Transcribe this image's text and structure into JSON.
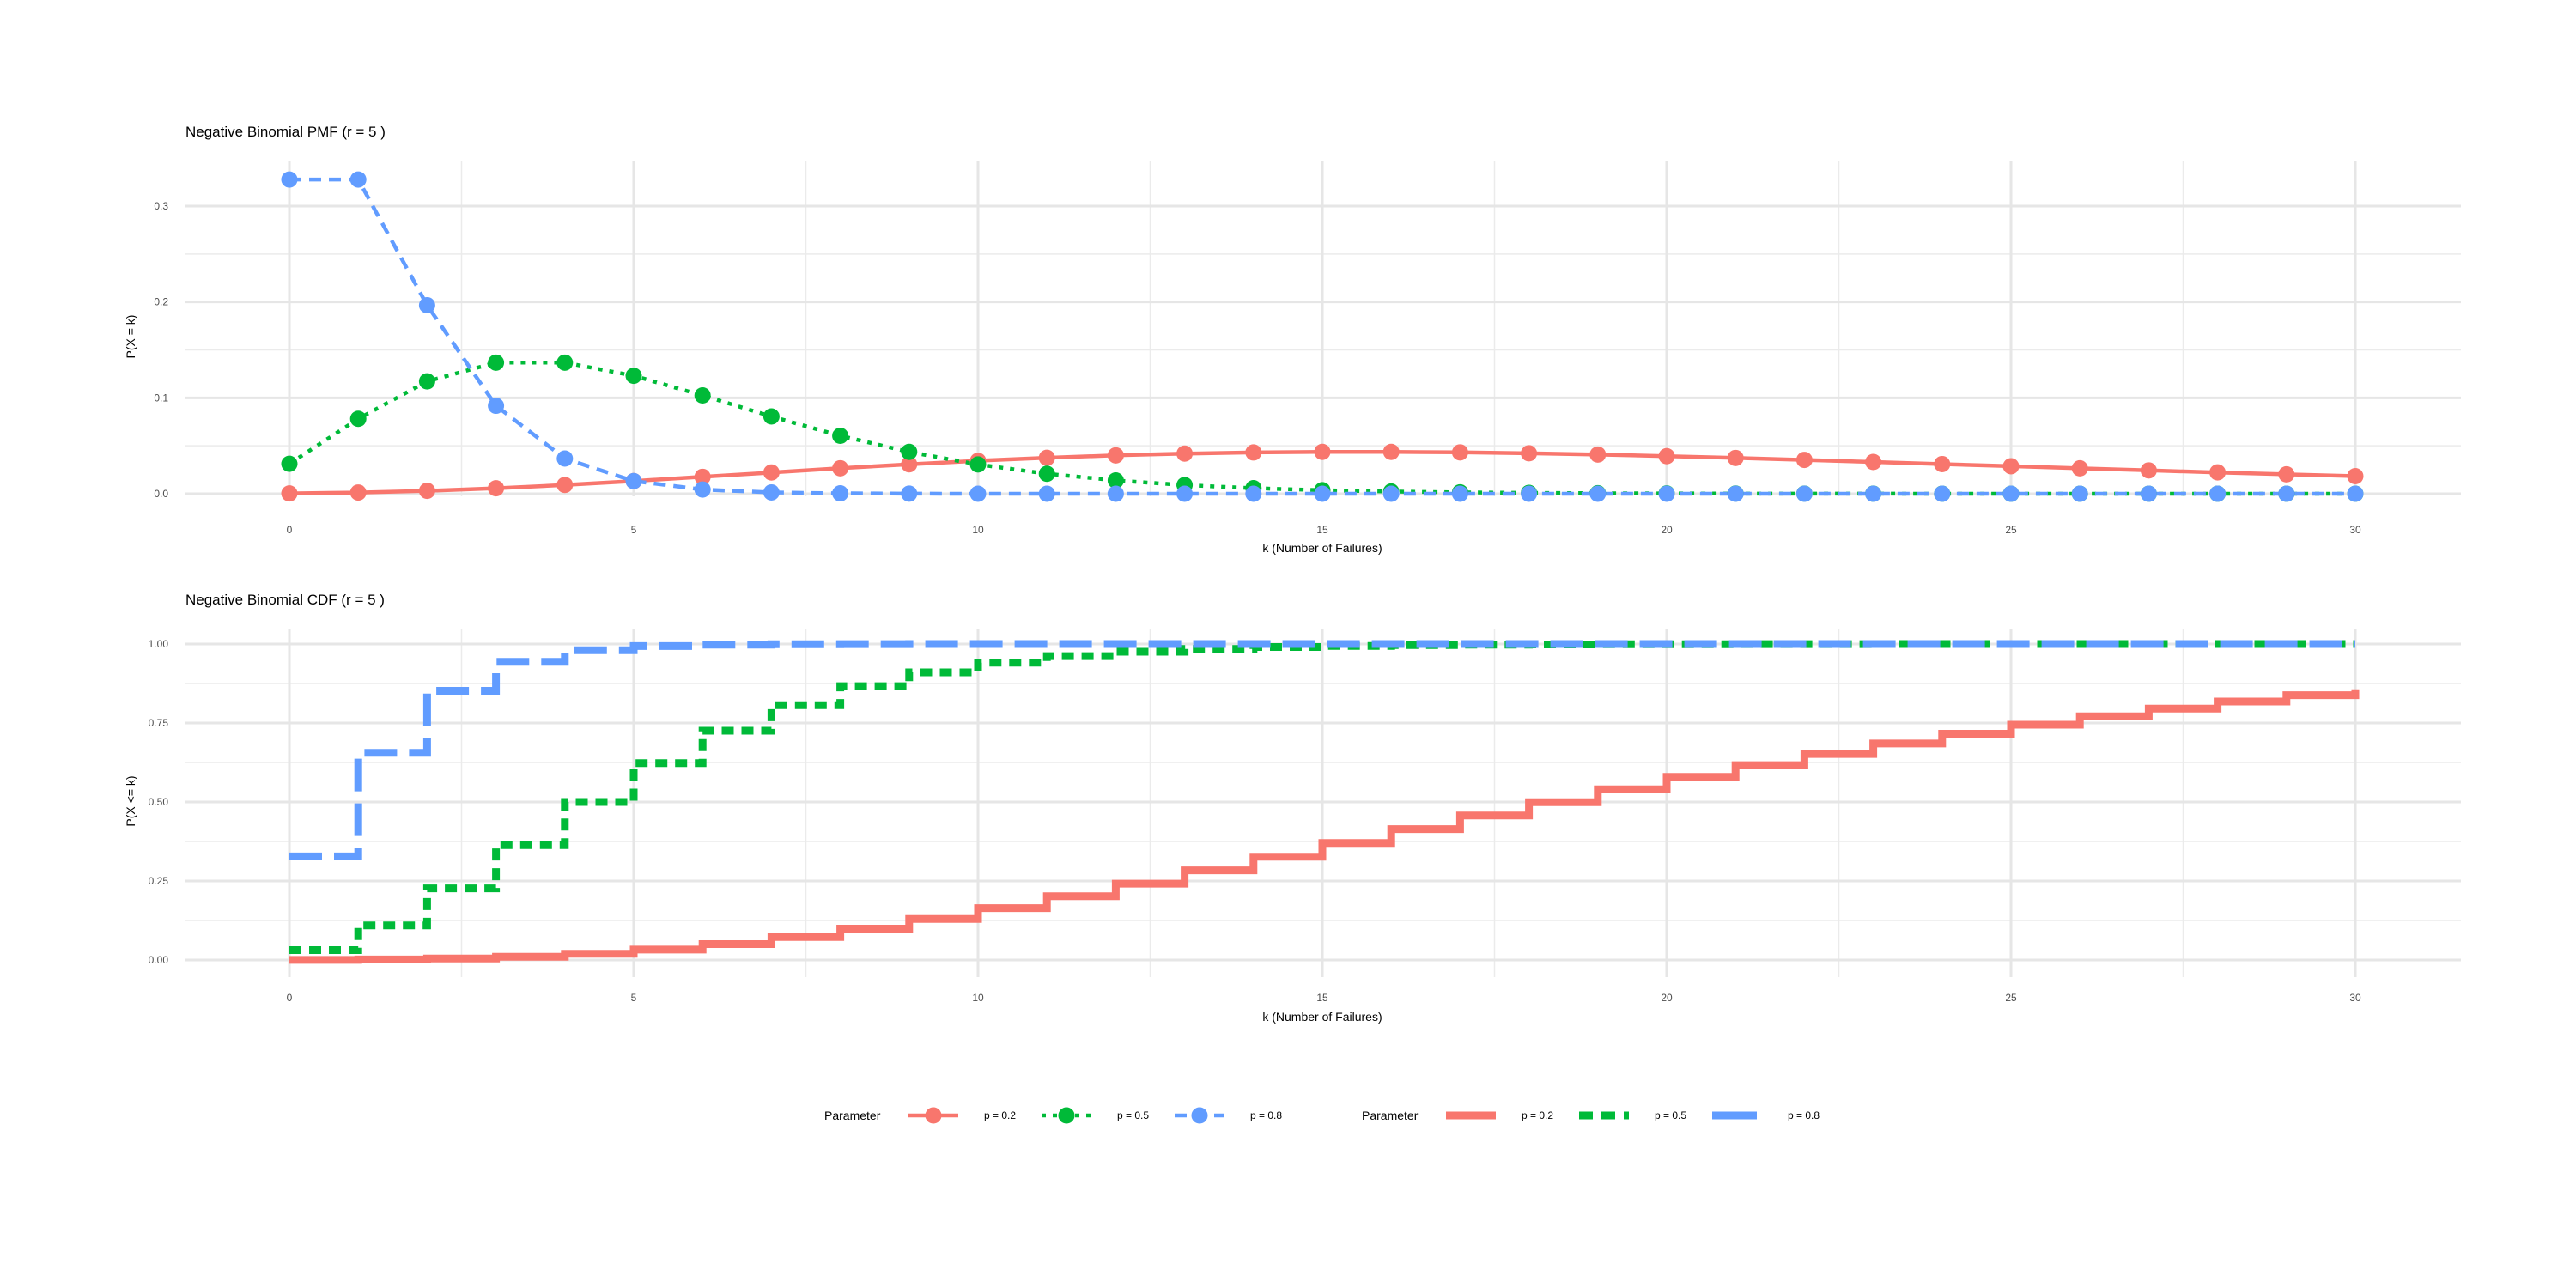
{
  "chart_data": [
    {
      "type": "line",
      "title": "Negative Binomial PMF (r = 5 )",
      "xlabel": "k (Number of Failures)",
      "ylabel": "P(X = k)",
      "xlim": [
        0,
        30
      ],
      "ylim": [
        0,
        0.33
      ],
      "x_ticks": [
        "0",
        "5",
        "10",
        "15",
        "20",
        "25",
        "30"
      ],
      "y_ticks": [
        "0.0",
        "0.1",
        "0.2",
        "0.3"
      ],
      "grid": true,
      "markers": true,
      "x": [
        0,
        1,
        2,
        3,
        4,
        5,
        6,
        7,
        8,
        9,
        10,
        11,
        12,
        13,
        14,
        15,
        16,
        17,
        18,
        19,
        20,
        21,
        22,
        23,
        24,
        25,
        26,
        27,
        28,
        29,
        30
      ],
      "series": [
        {
          "name": "p = 0.2",
          "color": "#F8766D",
          "dash": "solid",
          "values": [
            0.00032,
            0.00128,
            0.00307,
            0.00573,
            0.00917,
            0.01321,
            0.01761,
            0.02214,
            0.02657,
            0.0307,
            0.03438,
            0.03751,
            0.04001,
            0.04186,
            0.04306,
            0.04364,
            0.04364,
            0.04313,
            0.04217,
            0.04084,
            0.0392,
            0.03733,
            0.0353,
            0.03315,
            0.03094,
            0.02871,
            0.0265,
            0.02434,
            0.02225,
            0.02025,
            0.01836
          ]
        },
        {
          "name": "p = 0.5",
          "color": "#00BA38",
          "dash": "dotted",
          "values": [
            0.03125,
            0.07813,
            0.11719,
            0.13672,
            0.13672,
            0.12305,
            0.10254,
            0.08057,
            0.06042,
            0.04364,
            0.03055,
            0.02083,
            0.01389,
            0.00908,
            0.00584,
            0.0037,
            0.00231,
            0.00143,
            0.00087,
            0.00053,
            0.00032,
            0.00019,
            0.00011,
            7e-05,
            4e-05,
            2e-05,
            1e-05,
            1e-05,
            0.0,
            0.0,
            0.0
          ]
        },
        {
          "name": "p = 0.8",
          "color": "#619CFF",
          "dash": "dashed",
          "values": [
            0.32768,
            0.32768,
            0.19661,
            0.09175,
            0.0367,
            0.01321,
            0.0044,
            0.00138,
            0.00041,
            0.00012,
            3e-05,
            1e-05,
            0.0,
            0.0,
            0.0,
            0.0,
            0.0,
            0.0,
            0.0,
            0.0,
            0.0,
            0.0,
            0.0,
            0.0,
            0.0,
            0.0,
            0.0,
            0.0,
            0.0,
            0.0,
            0.0
          ]
        }
      ],
      "legend": {
        "title": "Parameter",
        "position": "bottom"
      }
    },
    {
      "type": "line",
      "title": "Negative Binomial CDF (r = 5 )",
      "xlabel": "k (Number of Failures)",
      "ylabel": "P(X <= k)",
      "xlim": [
        0,
        30
      ],
      "ylim": [
        0,
        1
      ],
      "x_ticks": [
        "0",
        "5",
        "10",
        "15",
        "20",
        "25",
        "30"
      ],
      "y_ticks": [
        "0.00",
        "0.25",
        "0.50",
        "0.75",
        "1.00"
      ],
      "grid": true,
      "step": true,
      "x": [
        0,
        1,
        2,
        3,
        4,
        5,
        6,
        7,
        8,
        9,
        10,
        11,
        12,
        13,
        14,
        15,
        16,
        17,
        18,
        19,
        20,
        21,
        22,
        23,
        24,
        25,
        26,
        27,
        28,
        29,
        30
      ],
      "series": [
        {
          "name": "p = 0.2",
          "color": "#F8766D",
          "dash": "solid",
          "values": [
            0.0003,
            0.0016,
            0.0047,
            0.0104,
            0.0196,
            0.0328,
            0.0504,
            0.0726,
            0.0991,
            0.1298,
            0.1642,
            0.2017,
            0.2417,
            0.2836,
            0.3267,
            0.3703,
            0.414,
            0.4571,
            0.4993,
            0.5401,
            0.5793,
            0.6166,
            0.6519,
            0.6851,
            0.716,
            0.7447,
            0.7712,
            0.7956,
            0.8178,
            0.8381,
            0.8564
          ]
        },
        {
          "name": "p = 0.5",
          "color": "#00BA38",
          "dash": "dashed",
          "values": [
            0.0313,
            0.1094,
            0.2266,
            0.3633,
            0.5,
            0.623,
            0.7256,
            0.8062,
            0.8666,
            0.9102,
            0.9408,
            0.9616,
            0.9755,
            0.9846,
            0.9904,
            0.9941,
            0.9964,
            0.9978,
            0.9987,
            0.9992,
            0.9995,
            0.9997,
            0.9998,
            0.9999,
            0.9999,
            1.0,
            1.0,
            1.0,
            1.0,
            1.0,
            1.0
          ]
        },
        {
          "name": "p = 0.8",
          "color": "#619CFF",
          "dash": "longdash",
          "values": [
            0.3277,
            0.6554,
            0.852,
            0.9437,
            0.9804,
            0.9936,
            0.998,
            0.9994,
            0.9998,
            1.0,
            1.0,
            1.0,
            1.0,
            1.0,
            1.0,
            1.0,
            1.0,
            1.0,
            1.0,
            1.0,
            1.0,
            1.0,
            1.0,
            1.0,
            1.0,
            1.0,
            1.0,
            1.0,
            1.0,
            1.0,
            1.0
          ]
        }
      ],
      "legend": {
        "title": "Parameter",
        "position": "bottom"
      }
    }
  ]
}
